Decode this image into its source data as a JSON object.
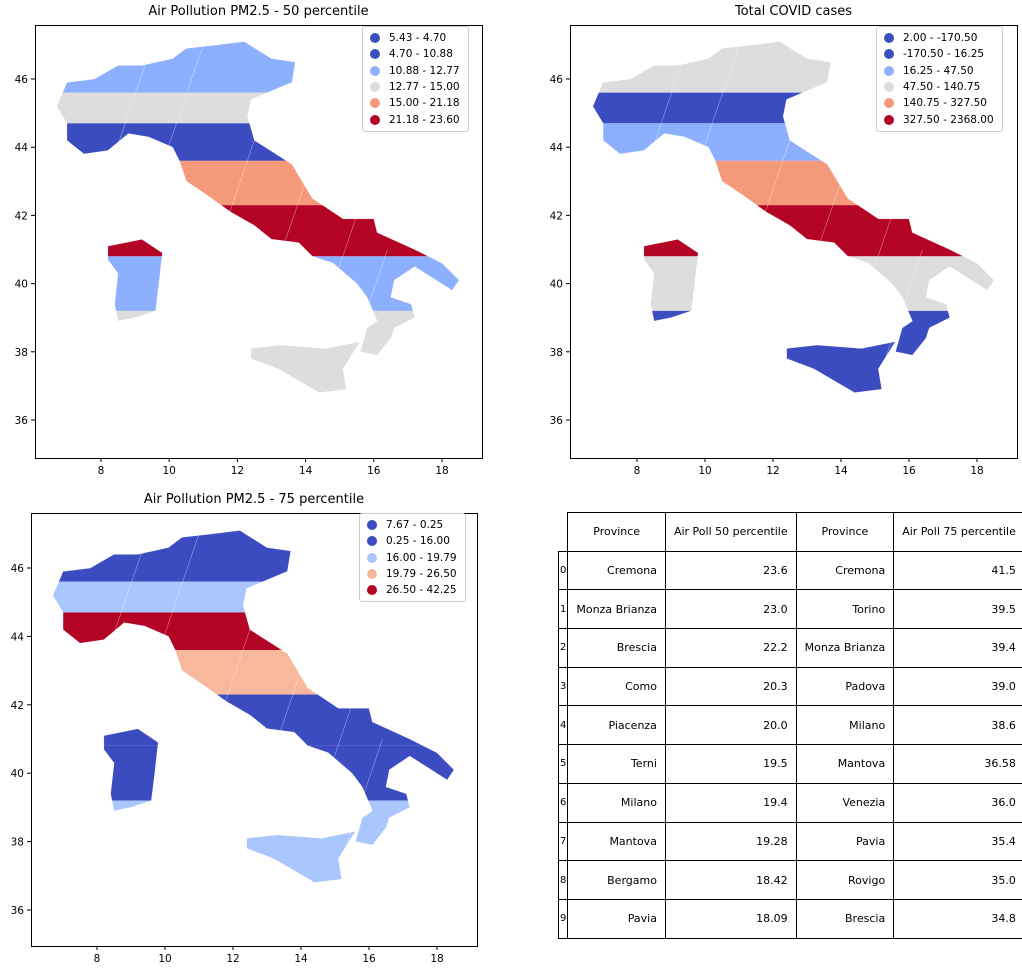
{
  "maps": [
    {
      "key": "pm25_p50",
      "title": "Air Pollution PM2.5 - 50 percentile",
      "xticks": [
        "8",
        "10",
        "12",
        "14",
        "16",
        "18"
      ],
      "yticks": [
        "46",
        "44",
        "42",
        "40",
        "38",
        "36"
      ],
      "legend": [
        {
          "label": "5.43 - 4.70",
          "color": "#3b4cc0"
        },
        {
          "label": "4.70 - 10.88",
          "color": "#3b4cc0"
        },
        {
          "label": "10.88 - 12.77",
          "color": "#8db0fe"
        },
        {
          "label": "12.77 - 15.00",
          "color": "#dddddd"
        },
        {
          "label": "15.00 - 21.18",
          "color": "#f49a7b"
        },
        {
          "label": "21.18 - 23.60",
          "color": "#b40426"
        }
      ]
    },
    {
      "key": "covid_total",
      "title": "Total COVID cases",
      "xticks": [
        "8",
        "10",
        "12",
        "14",
        "16",
        "18"
      ],
      "yticks": [
        "46",
        "44",
        "42",
        "40",
        "38",
        "36"
      ],
      "legend": [
        {
          "label": "2.00 - -170.50",
          "color": "#3b4cc0"
        },
        {
          "label": "-170.50 - 16.25",
          "color": "#3b4cc0"
        },
        {
          "label": "16.25 - 47.50",
          "color": "#8db0fe"
        },
        {
          "label": "47.50 - 140.75",
          "color": "#dddddd"
        },
        {
          "label": "140.75 - 327.50",
          "color": "#f49a7b"
        },
        {
          "label": "327.50 - 2368.00",
          "color": "#b40426"
        }
      ]
    },
    {
      "key": "pm25_p75",
      "title": "Air Pollution PM2.5 - 75 percentile",
      "xticks": [
        "8",
        "10",
        "12",
        "14",
        "16",
        "18"
      ],
      "yticks": [
        "46",
        "44",
        "42",
        "40",
        "38",
        "36"
      ],
      "legend": [
        {
          "label": "7.67 - 0.25",
          "color": "#3b4cc0"
        },
        {
          "label": "0.25 - 16.00",
          "color": "#3b4cc0"
        },
        {
          "label": "16.00 - 19.79",
          "color": "#aac7fd"
        },
        {
          "label": "19.79 - 26.50",
          "color": "#f7b89c"
        },
        {
          "label": "26.50 - 42.25",
          "color": "#b40426"
        }
      ]
    }
  ],
  "table": {
    "headers": [
      "Province",
      "Air Poll 50 percentile",
      "Province",
      "Air Poll 75 percentile"
    ],
    "rows": [
      {
        "index": "0",
        "province_a": "Cremona",
        "p50": "23.6",
        "province_b": "Cremona",
        "p75": "41.5"
      },
      {
        "index": "1",
        "province_a": "Monza Brianza",
        "p50": "23.0",
        "province_b": "Torino",
        "p75": "39.5"
      },
      {
        "index": "2",
        "province_a": "Brescia",
        "p50": "22.2",
        "province_b": "Monza Brianza",
        "p75": "39.4"
      },
      {
        "index": "3",
        "province_a": "Como",
        "p50": "20.3",
        "province_b": "Padova",
        "p75": "39.0"
      },
      {
        "index": "4",
        "province_a": "Piacenza",
        "p50": "20.0",
        "province_b": "Milano",
        "p75": "38.6"
      },
      {
        "index": "5",
        "province_a": "Terni",
        "p50": "19.5",
        "province_b": "Mantova",
        "p75": "36.58"
      },
      {
        "index": "6",
        "province_a": "Milano",
        "p50": "19.4",
        "province_b": "Venezia",
        "p75": "36.0"
      },
      {
        "index": "7",
        "province_a": "Mantova",
        "p50": "19.28",
        "province_b": "Pavia",
        "p75": "35.4"
      },
      {
        "index": "8",
        "province_a": "Bergamo",
        "p50": "18.42",
        "province_b": "Rovigo",
        "p75": "35.0"
      },
      {
        "index": "9",
        "province_a": "Pavia",
        "p50": "18.09",
        "province_b": "Brescia",
        "p75": "34.8"
      }
    ]
  }
}
